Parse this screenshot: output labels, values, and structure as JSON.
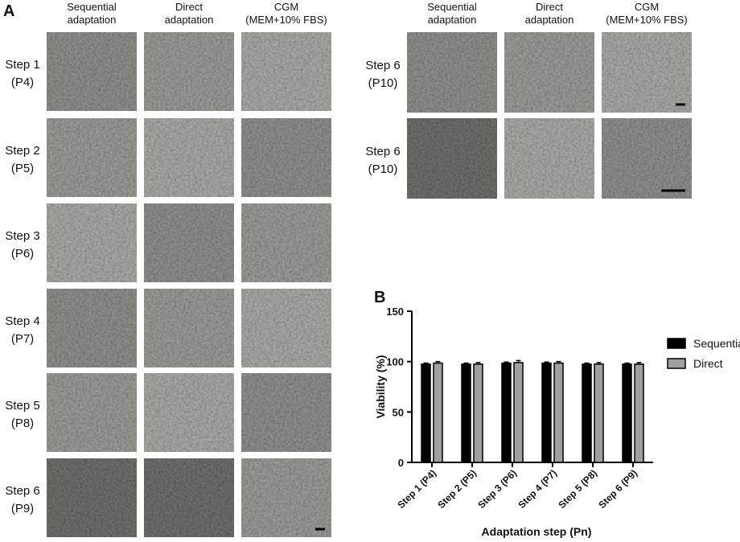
{
  "panel_a": {
    "label": "A",
    "left": {
      "columns": [
        [
          "Sequential",
          "adaptation"
        ],
        [
          "Direct",
          "adaptation"
        ],
        [
          "CGM",
          "(MEM+10% FBS)"
        ]
      ],
      "rows": [
        [
          "Step 1",
          "(P4)"
        ],
        [
          "Step 2",
          "(P5)"
        ],
        [
          "Step 3",
          "(P6)"
        ],
        [
          "Step 4",
          "(P7)"
        ],
        [
          "Step 5",
          "(P8)"
        ],
        [
          "Step 6",
          "(P9)"
        ]
      ]
    },
    "right": {
      "columns": [
        [
          "Sequential",
          "adaptation"
        ],
        [
          "Direct",
          "adaptation"
        ],
        [
          "CGM",
          "(MEM+10% FBS)"
        ]
      ],
      "rows": [
        [
          "Step 6",
          "(P10)"
        ],
        [
          "Step 6",
          "(P10)"
        ]
      ]
    }
  },
  "chart_data": {
    "type": "bar",
    "panel_label": "B",
    "x_label": "Adaptation step (Pn)",
    "y_label": "Viability (%)",
    "categories": [
      "Step 1 (P4)",
      "Step 2 (P5)",
      "Step 3 (P6)",
      "Step 4 (P7)",
      "Step 5 (P8)",
      "Step 6 (P9)"
    ],
    "series": [
      {
        "name": "Sequential",
        "color": "#000000",
        "values": [
          97.5,
          97.5,
          98.5,
          98.5,
          97.5,
          97.5
        ],
        "errors": [
          1,
          1,
          1,
          1,
          1,
          1
        ]
      },
      {
        "name": "Direct",
        "color": "#a0a0a0",
        "values": [
          98.5,
          97.5,
          99,
          98.5,
          97.5,
          97.5
        ],
        "errors": [
          1.5,
          1.5,
          2,
          1.5,
          1.5,
          1.5
        ]
      }
    ],
    "ylim": [
      0,
      150
    ],
    "yticks": [
      0,
      50,
      100,
      150
    ],
    "grid": false,
    "legend": "right"
  }
}
